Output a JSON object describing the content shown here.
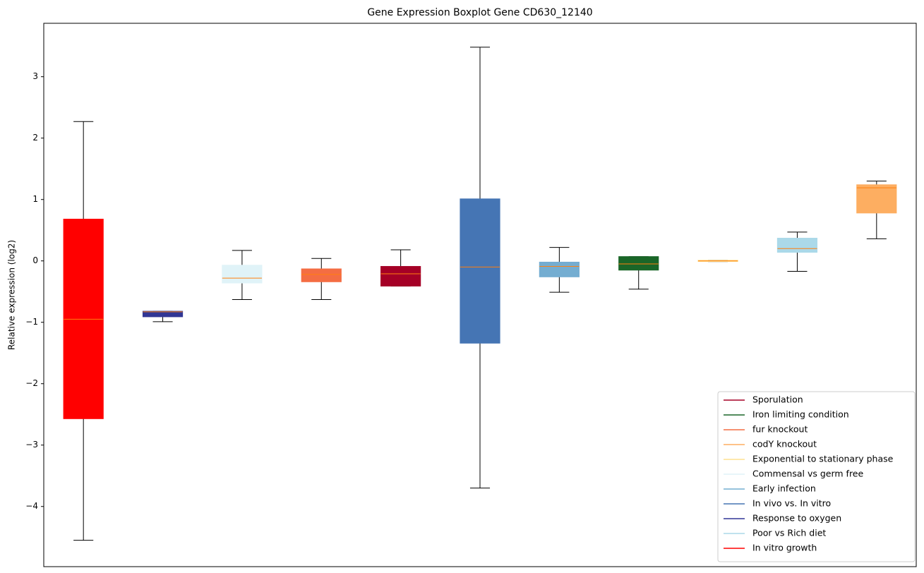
{
  "chart_data": {
    "type": "box",
    "title": "Gene Expression Boxplot Gene CD630_12140",
    "y_label": "Relative expression (log2)",
    "xlim": [
      0.5,
      11.5
    ],
    "ylim": [
      -4.98,
      3.87
    ],
    "yticks": [
      {
        "value": -4,
        "label": "−4"
      },
      {
        "value": -3,
        "label": "−3"
      },
      {
        "value": -2,
        "label": "−2"
      },
      {
        "value": -1,
        "label": "−1"
      },
      0,
      1,
      2,
      3
    ],
    "grid": false,
    "legend_position": "lower right",
    "median_color": "#ff7f0e",
    "whisker_color": "#000000",
    "series": [
      {
        "name": "Sporulation",
        "color": "#a50026",
        "x": 5,
        "whisker_low": -0.41,
        "q1": -0.41,
        "median": -0.21,
        "q3": -0.09,
        "whisker_high": 0.18
      },
      {
        "name": "Iron limiting condition",
        "color": "#1a6628",
        "x": 8,
        "whisker_low": -0.46,
        "q1": -0.15,
        "median": -0.05,
        "q3": 0.07,
        "whisker_high": 0.07
      },
      {
        "name": "fur knockout",
        "color": "#f46d43",
        "x": 4,
        "whisker_low": -0.63,
        "q1": -0.34,
        "median": -0.22,
        "q3": -0.13,
        "whisker_high": 0.04
      },
      {
        "name": "codY knockout",
        "color": "#fdae61",
        "x": 11,
        "whisker_low": 0.36,
        "q1": 0.78,
        "median": 1.19,
        "q3": 1.24,
        "whisker_high": 1.3
      },
      {
        "name": "Exponential to stationary phase",
        "color": "#fee090",
        "x": 9,
        "whisker_low": -0.01,
        "q1": -0.01,
        "median": 0,
        "q3": 0.01,
        "whisker_high": 0.01
      },
      {
        "name": "Commensal vs germ free",
        "color": "#e0f3f8",
        "x": 3,
        "whisker_low": -0.63,
        "q1": -0.36,
        "median": -0.28,
        "q3": -0.07,
        "whisker_high": 0.17
      },
      {
        "name": "Early infection",
        "color": "#74add1",
        "x": 7,
        "whisker_low": -0.51,
        "q1": -0.26,
        "median": -0.09,
        "q3": -0.02,
        "whisker_high": 0.22
      },
      {
        "name": "In vivo vs. In vitro",
        "color": "#4575b4",
        "x": 6,
        "whisker_low": -3.7,
        "q1": -1.34,
        "median": -0.1,
        "q3": 1.01,
        "whisker_high": 3.48
      },
      {
        "name": "Response to oxygen",
        "color": "#313695",
        "x": 2,
        "whisker_low": -0.99,
        "q1": -0.91,
        "median": -0.83,
        "q3": -0.82,
        "whisker_high": -0.82
      },
      {
        "name": "Poor vs Rich diet",
        "color": "#abd9e9",
        "x": 10,
        "whisker_low": -0.17,
        "q1": 0.14,
        "median": 0.2,
        "q3": 0.37,
        "whisker_high": 0.47
      },
      {
        "name": "In vitro growth",
        "color": "#ff0000",
        "x": 1,
        "whisker_low": -4.55,
        "q1": -2.57,
        "median": -0.95,
        "q3": 0.68,
        "whisker_high": 2.27
      }
    ]
  }
}
